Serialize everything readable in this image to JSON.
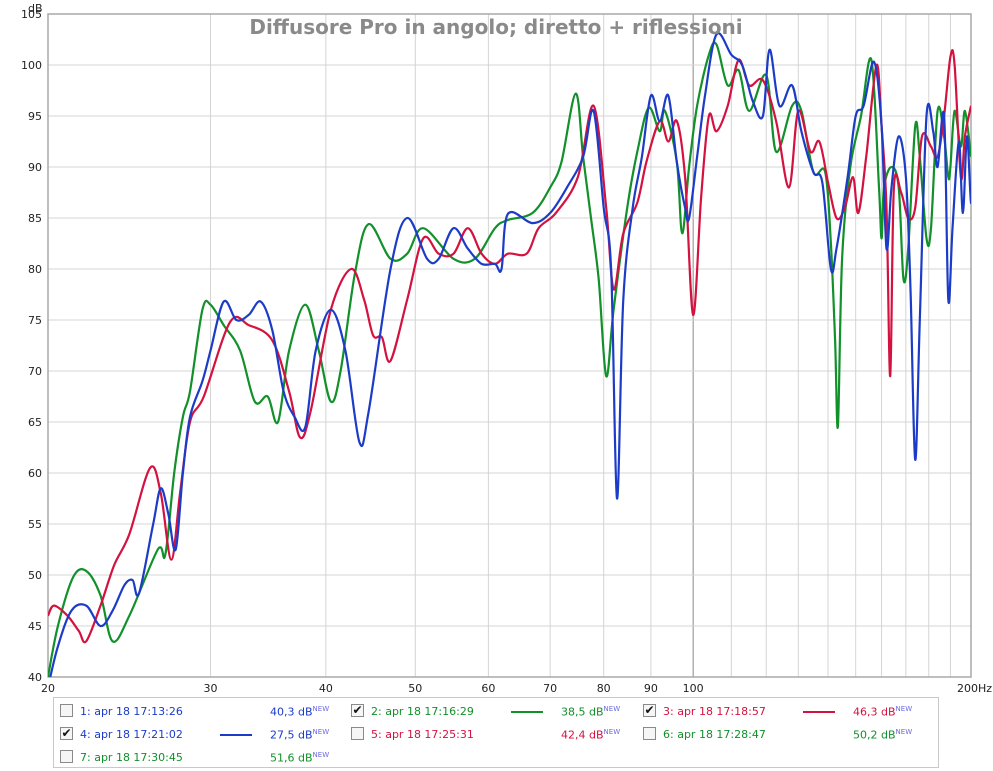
{
  "chart_data": {
    "type": "line",
    "title": "Diffusore Pro in angolo; diretto + riflessioni",
    "ylabel": "dB",
    "xunit": "Hz",
    "xscale": "log",
    "xlim": [
      20,
      200
    ],
    "ylim": [
      40,
      105
    ],
    "grid": true,
    "x_ticks": [
      {
        "v": 20,
        "label": "20"
      },
      {
        "v": 30,
        "label": "30"
      },
      {
        "v": 40,
        "label": "40"
      },
      {
        "v": 50,
        "label": "50"
      },
      {
        "v": 60,
        "label": "60"
      },
      {
        "v": 70,
        "label": "70"
      },
      {
        "v": 80,
        "label": "80"
      },
      {
        "v": 90,
        "label": "90"
      },
      {
        "v": 100,
        "label": "100"
      },
      {
        "v": 200,
        "label": "200Hz"
      }
    ],
    "y_ticks": [
      "40",
      "45",
      "50",
      "55",
      "60",
      "65",
      "70",
      "75",
      "80",
      "85",
      "90",
      "95",
      "100",
      "105"
    ],
    "series": [
      {
        "name": "2: apr 18 17:16:29",
        "color": "#12902a",
        "points": [
          [
            20,
            40
          ],
          [
            20.5,
            45
          ],
          [
            21.3,
            49.8
          ],
          [
            22,
            50.4
          ],
          [
            22.8,
            48
          ],
          [
            23.5,
            43.5
          ],
          [
            24.5,
            46
          ],
          [
            26.3,
            52.5
          ],
          [
            26.8,
            52
          ],
          [
            27.4,
            60
          ],
          [
            28,
            65.5
          ],
          [
            28.5,
            68
          ],
          [
            29.4,
            76
          ],
          [
            30,
            76.5
          ],
          [
            31,
            74.5
          ],
          [
            32.3,
            72
          ],
          [
            33.5,
            67
          ],
          [
            34.6,
            67.5
          ],
          [
            35.5,
            65
          ],
          [
            36.5,
            72
          ],
          [
            38,
            76.5
          ],
          [
            39.3,
            72
          ],
          [
            40.5,
            67
          ],
          [
            41.5,
            70
          ],
          [
            43,
            79.5
          ],
          [
            44.5,
            84.4
          ],
          [
            47,
            81
          ],
          [
            49,
            81.5
          ],
          [
            51,
            84
          ],
          [
            55,
            81
          ],
          [
            58,
            81
          ],
          [
            61,
            84
          ],
          [
            63,
            84.8
          ],
          [
            67,
            85.5
          ],
          [
            70,
            88
          ],
          [
            72,
            90.5
          ],
          [
            74.6,
            97.2
          ],
          [
            76,
            91
          ],
          [
            77.5,
            85
          ],
          [
            79,
            79
          ],
          [
            80.5,
            69.5
          ],
          [
            82,
            76
          ],
          [
            85,
            86.5
          ],
          [
            87,
            91.5
          ],
          [
            89.5,
            95.8
          ],
          [
            92,
            93.5
          ],
          [
            93.2,
            95.5
          ],
          [
            96,
            90.5
          ],
          [
            97.3,
            83.5
          ],
          [
            99,
            90
          ],
          [
            101,
            96
          ],
          [
            104,
            101
          ],
          [
            106,
            102
          ],
          [
            109,
            98
          ],
          [
            112,
            99.5
          ],
          [
            115,
            95.5
          ],
          [
            120,
            99
          ],
          [
            123,
            91.5
          ],
          [
            128,
            96
          ],
          [
            131,
            95.5
          ],
          [
            135,
            89.5
          ],
          [
            139,
            89.5
          ],
          [
            141,
            82.5
          ],
          [
            142.5,
            73
          ],
          [
            143.5,
            64.6
          ],
          [
            145,
            81
          ],
          [
            148,
            90
          ],
          [
            152,
            95
          ],
          [
            156,
            100.5
          ],
          [
            159,
            88
          ],
          [
            160,
            83
          ],
          [
            161,
            88
          ],
          [
            164,
            90
          ],
          [
            167,
            88
          ],
          [
            169,
            79
          ],
          [
            171,
            82
          ],
          [
            174,
            94
          ],
          [
            176,
            91
          ],
          [
            179,
            83
          ],
          [
            181,
            84
          ],
          [
            184,
            95.5
          ],
          [
            187,
            93
          ],
          [
            189,
            89
          ],
          [
            190,
            90
          ],
          [
            192,
            95.5
          ],
          [
            195,
            92
          ],
          [
            197,
            95.5
          ],
          [
            200,
            91
          ]
        ]
      },
      {
        "name": "3: apr 18 17:18:57",
        "color": "#d41240",
        "points": [
          [
            20,
            46
          ],
          [
            20.3,
            47
          ],
          [
            21,
            46
          ],
          [
            21.6,
            44.5
          ],
          [
            22,
            43.5
          ],
          [
            22.8,
            47
          ],
          [
            23.6,
            51
          ],
          [
            24.5,
            54
          ],
          [
            25.8,
            60.5
          ],
          [
            26.5,
            58
          ],
          [
            27.2,
            51.5
          ],
          [
            27.8,
            58
          ],
          [
            28.5,
            65
          ],
          [
            29.5,
            67.5
          ],
          [
            31.5,
            74.8
          ],
          [
            33,
            74.5
          ],
          [
            35,
            73
          ],
          [
            36.5,
            68
          ],
          [
            37.5,
            63.5
          ],
          [
            38.5,
            66
          ],
          [
            40.5,
            76
          ],
          [
            42.6,
            80
          ],
          [
            44,
            77
          ],
          [
            45,
            73.5
          ],
          [
            46,
            73.3
          ],
          [
            47,
            71
          ],
          [
            49,
            77
          ],
          [
            51,
            83
          ],
          [
            53,
            81.5
          ],
          [
            55,
            81.5
          ],
          [
            57,
            84
          ],
          [
            59,
            81.5
          ],
          [
            61,
            80.5
          ],
          [
            63,
            81.5
          ],
          [
            66,
            81.5
          ],
          [
            68,
            84
          ],
          [
            71,
            85.5
          ],
          [
            75,
            89
          ],
          [
            78,
            96
          ],
          [
            80.5,
            86
          ],
          [
            82,
            78
          ],
          [
            84,
            83.5
          ],
          [
            87,
            86.5
          ],
          [
            89,
            90.5
          ],
          [
            92,
            94.5
          ],
          [
            94,
            92.5
          ],
          [
            96,
            94.5
          ],
          [
            98,
            89
          ],
          [
            100,
            75.5
          ],
          [
            102,
            87
          ],
          [
            104,
            95
          ],
          [
            106,
            93.5
          ],
          [
            109,
            96
          ],
          [
            112,
            100.5
          ],
          [
            115,
            98
          ],
          [
            119,
            98.5
          ],
          [
            123,
            94.5
          ],
          [
            127,
            88
          ],
          [
            130,
            95.5
          ],
          [
            134,
            91.5
          ],
          [
            137,
            92.5
          ],
          [
            140,
            88.5
          ],
          [
            143,
            85
          ],
          [
            146,
            86
          ],
          [
            149,
            89
          ],
          [
            151,
            85.5
          ],
          [
            154,
            91
          ],
          [
            158,
            100
          ],
          [
            160,
            94
          ],
          [
            162,
            86
          ],
          [
            163.5,
            69.5
          ],
          [
            165,
            88
          ],
          [
            168,
            87.5
          ],
          [
            171,
            85
          ],
          [
            174,
            86
          ],
          [
            177,
            93
          ],
          [
            181,
            92
          ],
          [
            184,
            91
          ],
          [
            187,
            95
          ],
          [
            190,
            100.8
          ],
          [
            192,
            100
          ],
          [
            195,
            89
          ],
          [
            197,
            93
          ],
          [
            200,
            96
          ]
        ]
      },
      {
        "name": "4: apr 18 17:21:02",
        "color": "#1c3cc8",
        "points": [
          [
            20,
            39
          ],
          [
            20.5,
            43
          ],
          [
            21.2,
            46.5
          ],
          [
            22,
            47
          ],
          [
            22.8,
            45
          ],
          [
            23.5,
            46.5
          ],
          [
            24.2,
            49
          ],
          [
            24.7,
            49.5
          ],
          [
            25.1,
            48.2
          ],
          [
            26,
            55
          ],
          [
            26.5,
            58.5
          ],
          [
            27,
            56
          ],
          [
            27.5,
            52.5
          ],
          [
            28,
            60
          ],
          [
            28.5,
            65.5
          ],
          [
            29.4,
            69
          ],
          [
            30,
            72
          ],
          [
            31,
            76.8
          ],
          [
            32,
            75
          ],
          [
            33,
            75.5
          ],
          [
            34,
            76.8
          ],
          [
            35,
            74
          ],
          [
            36,
            68
          ],
          [
            37,
            65.5
          ],
          [
            38,
            64.5
          ],
          [
            39,
            72
          ],
          [
            40.5,
            76
          ],
          [
            42,
            72
          ],
          [
            43.5,
            63
          ],
          [
            44.5,
            66
          ],
          [
            47,
            80
          ],
          [
            49,
            85
          ],
          [
            51.5,
            81
          ],
          [
            53,
            81
          ],
          [
            55,
            84
          ],
          [
            57,
            82
          ],
          [
            59,
            80.5
          ],
          [
            61,
            80.5
          ],
          [
            62,
            80
          ],
          [
            63,
            85.4
          ],
          [
            67,
            84.5
          ],
          [
            70,
            85.5
          ],
          [
            73,
            88
          ],
          [
            76,
            91
          ],
          [
            78,
            95.5
          ],
          [
            80,
            86
          ],
          [
            81.5,
            80
          ],
          [
            82.7,
            57.5
          ],
          [
            84,
            77
          ],
          [
            86,
            86
          ],
          [
            88,
            91
          ],
          [
            90,
            97
          ],
          [
            92,
            94.5
          ],
          [
            94,
            97
          ],
          [
            96,
            90.5
          ],
          [
            98,
            86
          ],
          [
            99,
            85
          ],
          [
            101,
            91
          ],
          [
            103,
            97
          ],
          [
            106,
            103
          ],
          [
            110,
            101
          ],
          [
            113,
            100
          ],
          [
            116,
            96.5
          ],
          [
            119,
            95
          ],
          [
            121,
            101.5
          ],
          [
            124,
            96
          ],
          [
            128,
            98
          ],
          [
            131,
            93.5
          ],
          [
            135,
            89.5
          ],
          [
            138,
            88.5
          ],
          [
            141,
            80
          ],
          [
            143,
            82
          ],
          [
            147,
            89
          ],
          [
            150,
            95
          ],
          [
            153,
            96
          ],
          [
            157,
            100.3
          ],
          [
            160,
            94
          ],
          [
            162,
            82
          ],
          [
            164,
            88
          ],
          [
            167,
            93
          ],
          [
            170,
            89
          ],
          [
            172,
            78
          ],
          [
            174,
            61.3
          ],
          [
            176,
            75
          ],
          [
            179,
            95
          ],
          [
            182,
            93.5
          ],
          [
            184,
            90
          ],
          [
            187,
            95
          ],
          [
            189,
            77
          ],
          [
            191,
            84
          ],
          [
            194,
            92.5
          ],
          [
            196,
            85.5
          ],
          [
            198,
            93
          ],
          [
            200,
            86.5
          ],
          [
            201,
            90
          ]
        ]
      }
    ]
  },
  "legend": [
    {
      "index": "1",
      "label": "1: apr 18 17:13:26",
      "level": "40,3 dB",
      "new": "NEW",
      "checked": false,
      "color": "#1c3cc8",
      "show_line": false
    },
    {
      "index": "2",
      "label": "2: apr 18 17:16:29",
      "level": "38,5 dB",
      "new": "NEW",
      "checked": true,
      "color": "#12902a",
      "show_line": true
    },
    {
      "index": "3",
      "label": "3: apr 18 17:18:57",
      "level": "46,3 dB",
      "new": "NEW",
      "checked": true,
      "color": "#d41240",
      "show_line": true
    },
    {
      "index": "4",
      "label": "4: apr 18 17:21:02",
      "level": "27,5 dB",
      "new": "NEW",
      "checked": true,
      "color": "#1c3cc8",
      "show_line": true
    },
    {
      "index": "5",
      "label": "5: apr 18 17:25:31",
      "level": "42,4 dB",
      "new": "NEW",
      "checked": false,
      "color": "#d41240",
      "show_line": false
    },
    {
      "index": "6",
      "label": "6: apr 18 17:28:47",
      "level": "50,2 dB",
      "new": "NEW",
      "checked": false,
      "color": "#12902a",
      "show_line": false
    },
    {
      "index": "7",
      "label": "7: apr 18 17:30:45",
      "level": "51,6 dB",
      "new": "NEW",
      "checked": false,
      "color": "#12902a",
      "show_line": false
    }
  ]
}
